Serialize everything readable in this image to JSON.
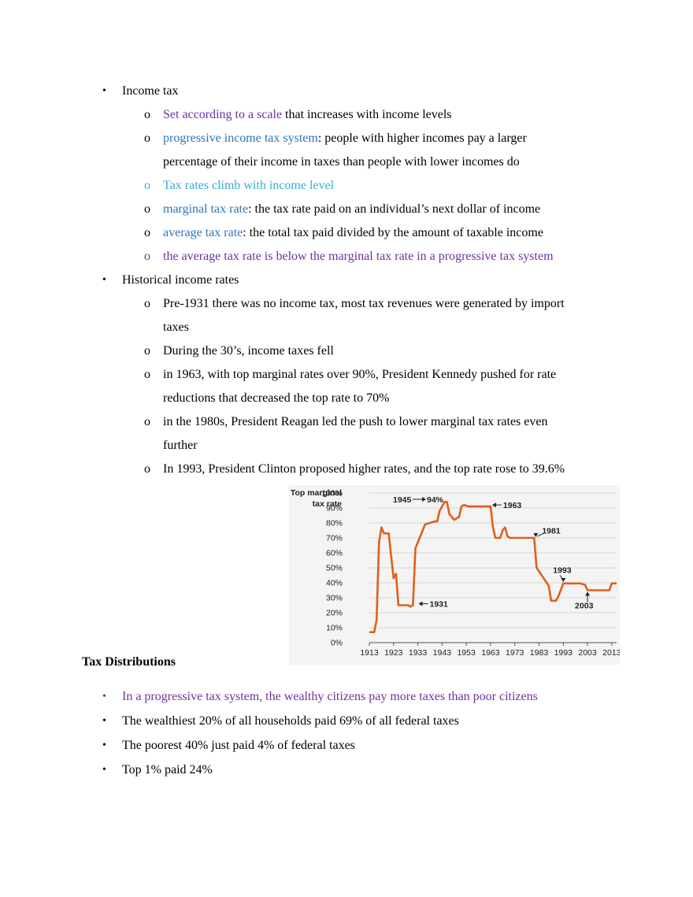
{
  "sections": {
    "income_tax": {
      "bullet": "Income tax",
      "items": [
        {
          "highlight": "Set according to a scale",
          "rest": " that increases with income levels"
        },
        {
          "highlight": "progressive income tax system",
          "rest": ": people with higher incomes pay a larger",
          "cont": "percentage of their income in taxes than people with lower incomes do"
        },
        {
          "highlight": "Tax rates climb with income level",
          "rest": ""
        },
        {
          "highlight": "marginal tax rate",
          "rest": ": the tax rate paid on an individual’s next dollar of income"
        },
        {
          "highlight": "average tax rate",
          "rest": ": the total tax paid divided by the amount of taxable income"
        },
        {
          "highlight": "the average tax rate is below the marginal tax rate in a progressive tax system",
          "rest": ""
        }
      ]
    },
    "historical": {
      "bullet": "Historical income rates",
      "items": [
        {
          "text": "Pre-1931 there was no income tax, most tax revenues were generated by import",
          "cont": "taxes"
        },
        {
          "text": "During the 30’s, income taxes fell"
        },
        {
          "text": "in 1963, with top marginal rates over 90%, President Kennedy pushed for rate",
          "cont": "reductions that decreased the top rate to 70%"
        },
        {
          "text": "in the 1980s, President Reagan led the push to lower marginal tax rates even",
          "cont": "further"
        },
        {
          "text": "In 1993, President Clinton proposed higher rates, and the top rate rose to 39.6%"
        }
      ]
    },
    "tax_distributions": {
      "heading": "Tax Distributions",
      "items": [
        {
          "text": "In a progressive tax system, the wealthy citizens pay more taxes than poor citizens"
        },
        {
          "text": "The wealthiest 20% of all households paid 69% of all federal taxes"
        },
        {
          "text": "The poorest 40% just paid 4% of federal taxes"
        },
        {
          "text": "Top 1% paid 24%"
        }
      ]
    }
  },
  "glyphs": {
    "bullet": "•",
    "sub_bullet": "o"
  },
  "colors": {
    "purple": "#7030a0",
    "blue": "#2e74b5",
    "cyan": "#31b0d5",
    "line": "#e0601b"
  },
  "chart_data": {
    "type": "line",
    "ylabel": [
      "Top marginal",
      "tax rate"
    ],
    "ylim": [
      0,
      100
    ],
    "xlim": [
      1913,
      2015
    ],
    "yticks": [
      0,
      10,
      20,
      30,
      40,
      50,
      60,
      70,
      80,
      90,
      100
    ],
    "ytick_labels": [
      "0%",
      "10%",
      "20%",
      "30%",
      "40%",
      "50%",
      "60%",
      "70%",
      "80%",
      "90%",
      "100%"
    ],
    "xticks": [
      1913,
      1923,
      1933,
      1943,
      1953,
      1963,
      1973,
      1983,
      1993,
      2003,
      2013
    ],
    "grid": "horizontal",
    "series": [
      {
        "x": [
          1913,
          1915,
          1916,
          1917,
          1918,
          1919,
          1921,
          1922,
          1923,
          1924,
          1925,
          1929,
          1930,
          1931,
          1932,
          1936,
          1940,
          1941,
          1942,
          1944,
          1945,
          1946,
          1948,
          1950,
          1951,
          1952,
          1954,
          1963,
          1964,
          1965,
          1967,
          1968,
          1969,
          1970,
          1971,
          1981,
          1982,
          1987,
          1988,
          1990,
          1991,
          1993,
          2000,
          2001,
          2002,
          2003,
          2012,
          2013,
          2015
        ],
        "y": [
          7,
          7,
          15,
          67,
          77,
          73,
          73,
          58,
          43,
          46,
          25,
          25,
          24,
          25,
          63,
          79,
          81,
          81,
          88,
          94,
          94,
          86,
          82,
          84,
          91,
          92,
          91,
          91,
          77,
          70,
          70,
          75,
          77,
          71,
          70,
          70,
          50,
          38,
          28,
          28,
          31,
          39.6,
          39.6,
          39.1,
          38.6,
          35,
          35,
          39.6,
          39.6
        ]
      }
    ],
    "annotations": [
      {
        "text": "1945",
        "arrow_to": "94%",
        "label": "94%"
      },
      {
        "text": "1963"
      },
      {
        "text": "1931"
      },
      {
        "text": "1981"
      },
      {
        "text": "1993"
      },
      {
        "text": "2003"
      }
    ]
  }
}
